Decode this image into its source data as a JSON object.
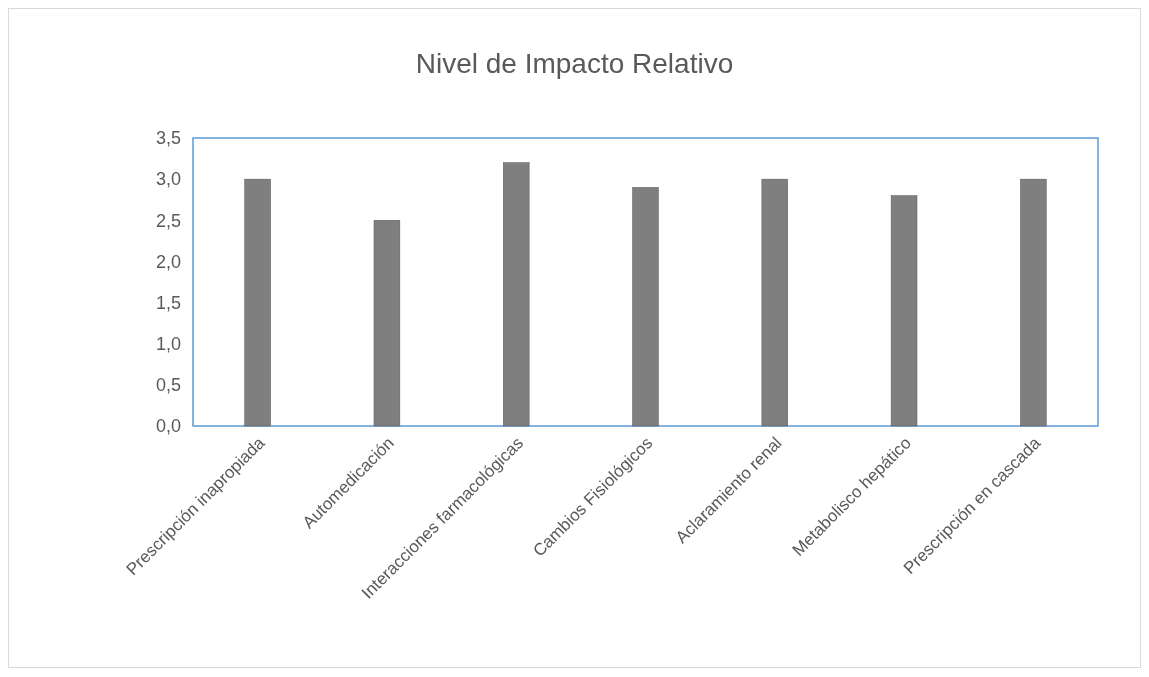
{
  "chart_data": {
    "type": "bar",
    "title": "Nivel de Impacto Relativo",
    "categories": [
      "Prescripción inapropiada",
      "Automedicación",
      "Interacciones farmacológicas",
      "Cambios Fisiológicos",
      "Aclaramiento renal",
      "Metabolisco hepático",
      "Prescripción en cascada"
    ],
    "values": [
      3.0,
      2.5,
      3.2,
      2.9,
      3.0,
      2.8,
      3.0
    ],
    "color": "#7f7f7f",
    "ylim": [
      0,
      3.5
    ],
    "yticks": [
      {
        "value": 0,
        "label": "0,0"
      },
      {
        "value": 0.5,
        "label": "0,5"
      },
      {
        "value": 1,
        "label": "1,0"
      },
      {
        "value": 1.5,
        "label": "1,5"
      },
      {
        "value": 2,
        "label": "2,0"
      },
      {
        "value": 2.5,
        "label": "2,5"
      },
      {
        "value": 3,
        "label": "3,0"
      },
      {
        "value": 3.5,
        "label": "3,5"
      }
    ],
    "grid": false
  }
}
